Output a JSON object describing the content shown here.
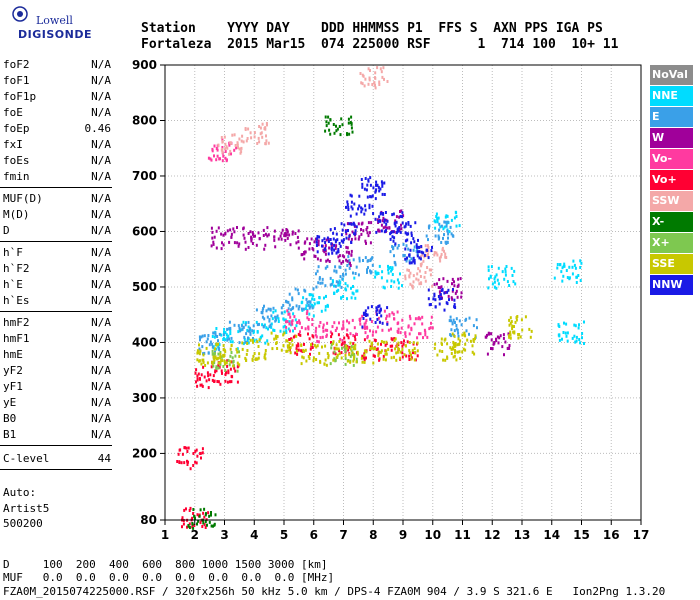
{
  "logo": {
    "line1": "Lowell",
    "line2": "DIGISONDE"
  },
  "header": {
    "line1": "Station    YYYY DAY    DDD HHMMSS P1  FFS S  AXN PPS IGA PS",
    "line2": "Fortaleza  2015 Mar15  074 225000 RSF      1  714 100  10+ 11"
  },
  "params_group1": [
    {
      "name": "foF2",
      "value": "N/A"
    },
    {
      "name": "foF1",
      "value": "N/A"
    },
    {
      "name": "foF1p",
      "value": "N/A"
    },
    {
      "name": "foE",
      "value": "N/A"
    },
    {
      "name": "foEp",
      "value": "0.46"
    },
    {
      "name": "fxI",
      "value": "N/A"
    },
    {
      "name": "foEs",
      "value": "N/A"
    },
    {
      "name": "fmin",
      "value": "N/A"
    }
  ],
  "params_group2": [
    {
      "name": "MUF(D)",
      "value": "N/A"
    },
    {
      "name": "M(D)",
      "value": "N/A"
    },
    {
      "name": "D",
      "value": "N/A"
    }
  ],
  "params_group3": [
    {
      "name": "h`F",
      "value": "N/A"
    },
    {
      "name": "h`F2",
      "value": "N/A"
    },
    {
      "name": "h`E",
      "value": "N/A"
    },
    {
      "name": "h`Es",
      "value": "N/A"
    }
  ],
  "params_group4": [
    {
      "name": "hmF2",
      "value": "N/A"
    },
    {
      "name": "hmF1",
      "value": "N/A"
    },
    {
      "name": "hmE",
      "value": "N/A"
    },
    {
      "name": "yF2",
      "value": "N/A"
    },
    {
      "name": "yF1",
      "value": "N/A"
    },
    {
      "name": "yE",
      "value": "N/A"
    },
    {
      "name": "B0",
      "value": "N/A"
    },
    {
      "name": "B1",
      "value": "N/A"
    }
  ],
  "clevel": {
    "name": "C-level",
    "value": "44"
  },
  "auto": {
    "line1": "Auto:",
    "line2": "Artist5",
    "line3": "500200"
  },
  "legend": [
    {
      "label": "NoVal",
      "color": "#8c8c8c"
    },
    {
      "label": "NNE",
      "color": "#00dcff"
    },
    {
      "label": "E",
      "color": "#3aa0e8"
    },
    {
      "label": "W",
      "color": "#a0009a"
    },
    {
      "label": "Vo-",
      "color": "#ff3aa0"
    },
    {
      "label": "Vo+",
      "color": "#ff0033"
    },
    {
      "label": "SSW",
      "color": "#f4a8a8"
    },
    {
      "label": "X-",
      "color": "#007a00"
    },
    {
      "label": "X+",
      "color": "#7ec850"
    },
    {
      "label": "SSE",
      "color": "#c8c800"
    },
    {
      "label": "NNW",
      "color": "#1a1ae6"
    }
  ],
  "bottom": {
    "d_row": "D     100  200  400  600  800 1000 1500 3000 [km]",
    "muf_row": "MUF   0.0  0.0  0.0  0.0  0.0  0.0  0.0  0.0 [MHz]",
    "footer": "FZA0M_2015074225000.RSF / 320fx256h 50 kHz 5.0 km / DPS-4 FZA0M 904 / 3.9 S 321.6 E   Ion2Png 1.3.20"
  },
  "chart_data": {
    "type": "scatter",
    "title": "",
    "xlabel": "",
    "ylabel": "",
    "xlim": [
      1,
      17
    ],
    "ylim": [
      80,
      900
    ],
    "x_ticks": [
      1,
      2,
      3,
      4,
      5,
      6,
      7,
      8,
      9,
      10,
      11,
      12,
      13,
      14,
      15,
      16,
      17
    ],
    "y_ticks": [
      80,
      200,
      300,
      400,
      500,
      600,
      700,
      800,
      900
    ],
    "grid": true,
    "series": [
      {
        "color": "#00dcff",
        "points": [
          [
            3.0,
            410
          ],
          [
            4.0,
            420
          ],
          [
            5.0,
            440
          ],
          [
            6.0,
            470
          ],
          [
            7.0,
            500
          ],
          [
            8.5,
            520
          ],
          [
            10.5,
            620
          ],
          [
            12.3,
            520
          ],
          [
            14.5,
            530
          ],
          [
            14.6,
            420
          ]
        ]
      },
      {
        "color": "#3aa0e8",
        "points": [
          [
            2.5,
            400
          ],
          [
            3.5,
            420
          ],
          [
            4.5,
            450
          ],
          [
            5.5,
            480
          ],
          [
            6.5,
            520
          ],
          [
            7.5,
            540
          ],
          [
            9.0,
            560
          ],
          [
            10.2,
            600
          ],
          [
            11.0,
            430
          ]
        ]
      },
      {
        "color": "#a0009a",
        "points": [
          [
            3.0,
            590
          ],
          [
            4.0,
            590
          ],
          [
            5.0,
            590
          ],
          [
            6.0,
            570
          ],
          [
            6.8,
            560
          ],
          [
            7.5,
            600
          ],
          [
            8.5,
            620
          ],
          [
            10.5,
            500
          ],
          [
            12.2,
            400
          ]
        ]
      },
      {
        "color": "#ff3aa0",
        "points": [
          [
            5.5,
            440
          ],
          [
            6.5,
            420
          ],
          [
            7.5,
            430
          ],
          [
            8.5,
            440
          ],
          [
            9.5,
            430
          ],
          [
            2.9,
            750
          ]
        ]
      },
      {
        "color": "#ff0033",
        "points": [
          [
            2.4,
            340
          ],
          [
            3.0,
            350
          ],
          [
            5.5,
            400
          ],
          [
            7.0,
            400
          ],
          [
            8.0,
            390
          ],
          [
            9.0,
            390
          ],
          [
            2.0,
            85
          ],
          [
            1.8,
            195
          ]
        ]
      },
      {
        "color": "#f4a8a8",
        "points": [
          [
            3.2,
            760
          ],
          [
            4.0,
            780
          ],
          [
            8.0,
            880
          ],
          [
            9.5,
            520
          ],
          [
            10.0,
            560
          ]
        ]
      },
      {
        "color": "#007a00",
        "points": [
          [
            6.8,
            790
          ],
          [
            2.2,
            85
          ]
        ]
      },
      {
        "color": "#7ec850",
        "points": [
          [
            7.0,
            380
          ],
          [
            3.0,
            370
          ]
        ]
      },
      {
        "color": "#c8c800",
        "points": [
          [
            2.5,
            380
          ],
          [
            3.0,
            380
          ],
          [
            4.0,
            390
          ],
          [
            5.0,
            400
          ],
          [
            6.0,
            380
          ],
          [
            7.0,
            385
          ],
          [
            8.0,
            385
          ],
          [
            9.0,
            390
          ],
          [
            10.5,
            390
          ],
          [
            11.0,
            400
          ],
          [
            13.0,
            430
          ]
        ]
      },
      {
        "color": "#1a1ae6",
        "points": [
          [
            6.5,
            580
          ],
          [
            7.0,
            600
          ],
          [
            7.5,
            650
          ],
          [
            8.0,
            680
          ],
          [
            8.5,
            620
          ],
          [
            9.0,
            600
          ],
          [
            9.5,
            560
          ],
          [
            10.3,
            480
          ],
          [
            8.0,
            450
          ]
        ]
      }
    ]
  }
}
